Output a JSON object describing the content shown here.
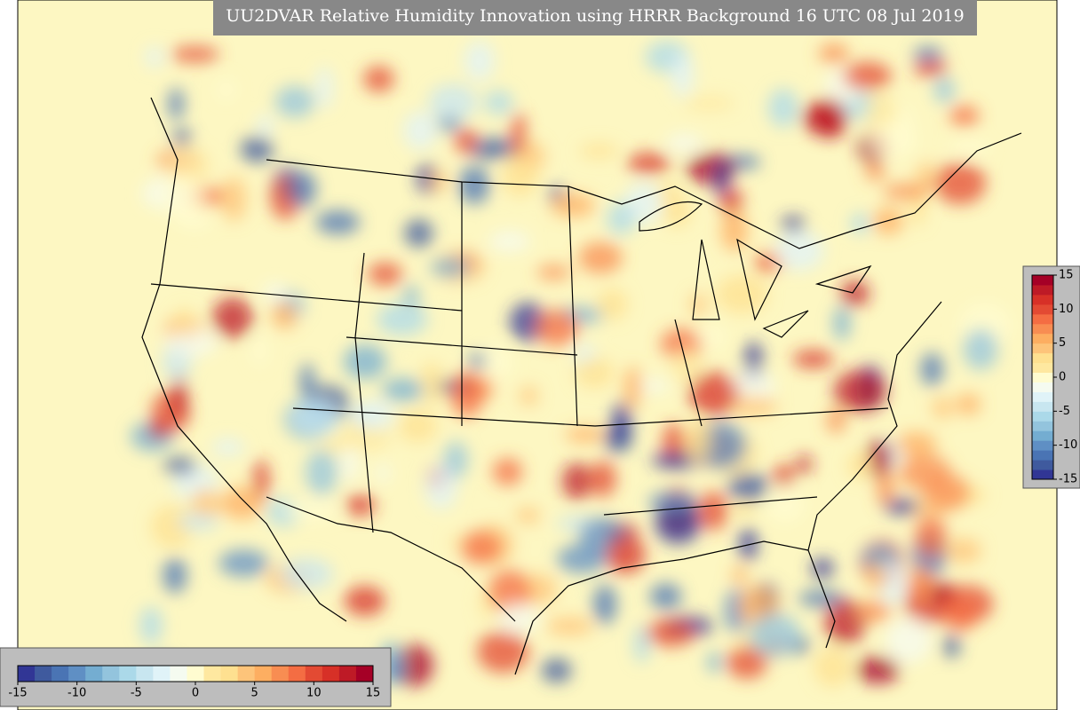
{
  "title": "UU2DVAR Relative Humidity Innovation using HRRR Background 16 UTC 08 Jul 2019",
  "colorbar": {
    "range": [
      -15,
      15
    ],
    "ticks": [
      -15,
      -10,
      -5,
      0,
      5,
      10,
      15
    ],
    "colors": [
      "#313695",
      "#3f5a9e",
      "#4a74b4",
      "#5f8fc4",
      "#74add1",
      "#93c4dd",
      "#abd9e9",
      "#c8e6f0",
      "#e0f3f8",
      "#f5fbf0",
      "#fffcd0",
      "#fee8a0",
      "#fee090",
      "#fdc47a",
      "#fdae61",
      "#f88d52",
      "#f46d43",
      "#e34a33",
      "#d73027",
      "#be1a26",
      "#a50026"
    ]
  }
}
